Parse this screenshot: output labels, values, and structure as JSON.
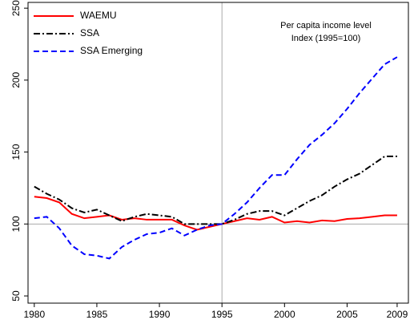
{
  "chart_data": {
    "type": "line",
    "annotation": [
      "Per capita income level",
      "Index (1995=100)"
    ],
    "x": [
      1980,
      1981,
      1982,
      1983,
      1984,
      1985,
      1986,
      1987,
      1988,
      1989,
      1990,
      1991,
      1992,
      1993,
      1994,
      1995,
      1996,
      1997,
      1998,
      1999,
      2000,
      2001,
      2002,
      2003,
      2004,
      2005,
      2006,
      2007,
      2008,
      2009
    ],
    "series": [
      {
        "name": "WAEMU",
        "color": "#ff0000",
        "dash": "solid",
        "values": [
          119,
          118,
          115,
          107,
          104,
          105,
          106,
          103,
          104,
          103,
          103,
          103,
          99,
          96,
          98,
          100,
          102,
          104,
          103,
          105,
          101,
          102,
          101,
          102.5,
          102,
          103.5,
          104,
          105,
          106,
          106
        ]
      },
      {
        "name": "SSA",
        "color": "#000000",
        "dash": "dashdot",
        "values": [
          126,
          121,
          117,
          111,
          108,
          110,
          106,
          102,
          105,
          107,
          106,
          105,
          100,
          100,
          100,
          100,
          103,
          107,
          109,
          109,
          106,
          111,
          116,
          120,
          126,
          131,
          135,
          141,
          147,
          147
        ]
      },
      {
        "name": "SSA Emerging",
        "color": "#0000ff",
        "dash": "dashed",
        "values": [
          104,
          105,
          97,
          85,
          79,
          78,
          76,
          84,
          89,
          93,
          94,
          97,
          92,
          96,
          99,
          100,
          107,
          115,
          125,
          134,
          134,
          145,
          155,
          162,
          170,
          180,
          191,
          201,
          211,
          216
        ]
      }
    ],
    "xlim": [
      1979.5,
      2009.9
    ],
    "xticks": [
      1980,
      1985,
      1990,
      1995,
      2000,
      2005,
      2009
    ],
    "ylim": [
      45,
      254
    ],
    "yticks": [
      50,
      100,
      150,
      200,
      250
    ],
    "hline": 100,
    "vline": 1995,
    "legend": "upper-left"
  }
}
